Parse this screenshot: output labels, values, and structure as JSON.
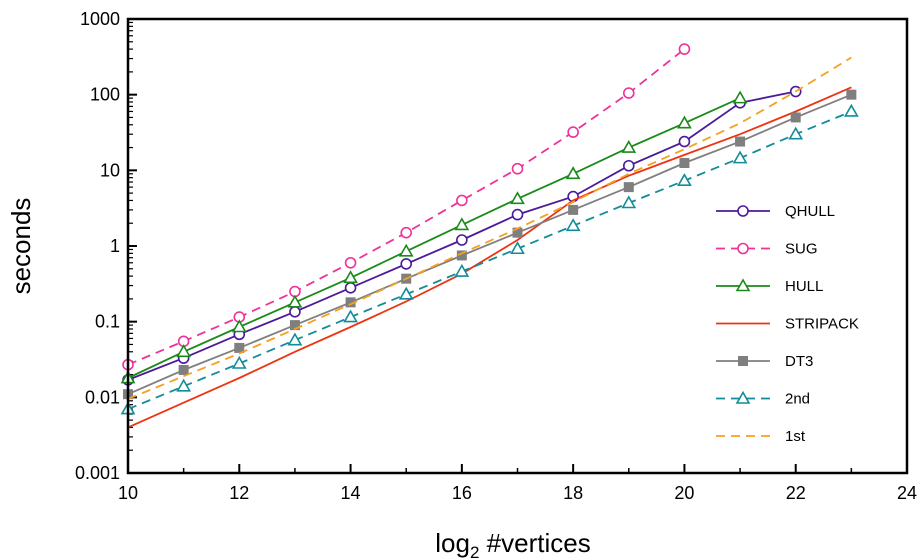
{
  "chart_data": {
    "type": "line",
    "xlabel": "log",
    "xlabel_sub": "2",
    "xlabel_rest": " #vertices",
    "ylabel": "seconds",
    "xlim": [
      10,
      24
    ],
    "ylim": [
      0.001,
      1000
    ],
    "yscale": "log",
    "x_ticks": [
      "10",
      "12",
      "14",
      "16",
      "18",
      "20",
      "22",
      "24"
    ],
    "y_ticks": [
      "0.001",
      "0.01",
      "0.1",
      "1",
      "10",
      "100",
      "1000"
    ],
    "legend_position": "right",
    "series": [
      {
        "name": "QHULL",
        "color": "#4b1a9a",
        "dash": "none",
        "marker": "circle",
        "x": [
          10,
          11,
          12,
          13,
          14,
          15,
          16,
          17,
          18,
          19,
          20,
          21,
          22
        ],
        "values": [
          0.017,
          0.033,
          0.068,
          0.135,
          0.28,
          0.58,
          1.2,
          2.6,
          4.5,
          11.5,
          24,
          78,
          110
        ]
      },
      {
        "name": "SUG",
        "color": "#ee3399",
        "dash": "dashed",
        "marker": "circle",
        "x": [
          10,
          11,
          12,
          13,
          14,
          15,
          16,
          17,
          18,
          19,
          20
        ],
        "values": [
          0.027,
          0.055,
          0.115,
          0.25,
          0.6,
          1.5,
          4,
          10.5,
          32,
          105,
          400
        ]
      },
      {
        "name": "HULL",
        "color": "#1a8a1a",
        "dash": "none",
        "marker": "triangle",
        "x": [
          10,
          11,
          12,
          13,
          14,
          15,
          16,
          17,
          18,
          19,
          20,
          21
        ],
        "values": [
          0.018,
          0.04,
          0.085,
          0.18,
          0.38,
          0.85,
          1.9,
          4.2,
          9,
          20,
          42,
          90
        ]
      },
      {
        "name": "STRIPACK",
        "color": "#ee3311",
        "dash": "none",
        "marker": "none",
        "x": [
          10,
          11,
          12,
          13,
          14,
          15,
          16,
          17,
          18,
          19,
          20,
          21,
          22,
          23
        ],
        "values": [
          0.004,
          0.0085,
          0.018,
          0.04,
          0.085,
          0.185,
          0.43,
          1.2,
          4,
          8.5,
          16,
          30,
          60,
          125
        ]
      },
      {
        "name": "DT3",
        "color": "#7f7f7f",
        "dash": "none",
        "marker": "square",
        "x": [
          10,
          11,
          12,
          13,
          14,
          15,
          16,
          17,
          18,
          19,
          20,
          21,
          22,
          23
        ],
        "values": [
          0.011,
          0.023,
          0.045,
          0.09,
          0.18,
          0.37,
          0.75,
          1.5,
          3,
          6,
          12.5,
          24,
          50,
          100
        ]
      },
      {
        "name": "2nd",
        "color": "#118c99",
        "dash": "dashed",
        "marker": "triangle",
        "x": [
          10,
          11,
          12,
          13,
          14,
          15,
          16,
          17,
          18,
          19,
          20,
          21,
          22,
          23
        ],
        "values": [
          0.007,
          0.014,
          0.028,
          0.057,
          0.115,
          0.23,
          0.46,
          0.92,
          1.85,
          3.7,
          7.3,
          14.5,
          30,
          60
        ]
      },
      {
        "name": "1st",
        "color": "#f5a020",
        "dash": "dashed",
        "marker": "none",
        "x": [
          10,
          11,
          12,
          13,
          14,
          15,
          16,
          17,
          18,
          19,
          20,
          21,
          22,
          23
        ],
        "values": [
          0.0095,
          0.019,
          0.038,
          0.08,
          0.17,
          0.37,
          0.8,
          1.7,
          3.8,
          9,
          19,
          42,
          110,
          310
        ]
      }
    ]
  }
}
